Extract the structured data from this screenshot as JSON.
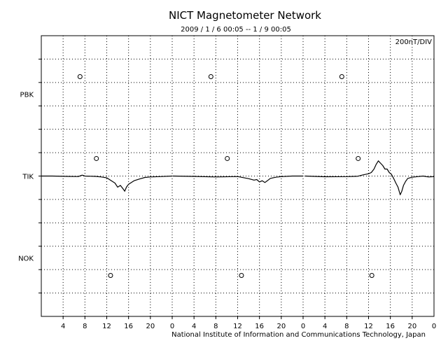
{
  "chart_data": {
    "type": "line",
    "title": "NICT Magnetometer Network",
    "subtitle": "2009 / 1 / 6   00:05 -- 1 / 9   00:05",
    "scale_label": "200nT/DIV",
    "credit": "National Institute of Information and Communications Technology, Japan",
    "x_tick_labels": [
      "4",
      "8",
      "12",
      "16",
      "20",
      "0",
      "4",
      "8",
      "12",
      "16",
      "20",
      "0",
      "4",
      "8",
      "12",
      "16",
      "20",
      "0"
    ],
    "x_range_hours": [
      0,
      72
    ],
    "days": 3,
    "stations": [
      "PBK",
      "TIK",
      "NOK"
    ],
    "station_offset_div": [
      3.5,
      0,
      -3.5
    ],
    "grid": "dotted",
    "gridlines": {
      "vertical_every_hours": 4,
      "horizontal_divisions": 12,
      "nt_per_division": 200
    },
    "series": [
      {
        "name": "TIK",
        "unit": "nT",
        "data_gaps_hours": [
          [
            24.0,
            24.1
          ],
          [
            48.0,
            48.4
          ]
        ],
        "points": [
          [
            0,
            0
          ],
          [
            2,
            0
          ],
          [
            5,
            -3
          ],
          [
            6.8,
            -4
          ],
          [
            7.5,
            8
          ],
          [
            8,
            0
          ],
          [
            10,
            -3
          ],
          [
            11,
            -8
          ],
          [
            12,
            -15
          ],
          [
            13,
            -45
          ],
          [
            13.5,
            -60
          ],
          [
            14,
            -95
          ],
          [
            14.5,
            -80
          ],
          [
            15,
            -110
          ],
          [
            15.3,
            -130
          ],
          [
            15.6,
            -95
          ],
          [
            16,
            -70
          ],
          [
            16.5,
            -55
          ],
          [
            17,
            -40
          ],
          [
            18,
            -25
          ],
          [
            19,
            -12
          ],
          [
            20,
            -8
          ],
          [
            22,
            -4
          ],
          [
            24,
            0
          ],
          [
            24.1,
            0
          ],
          [
            28,
            -3
          ],
          [
            32,
            -8
          ],
          [
            36,
            -4
          ],
          [
            38,
            -22
          ],
          [
            39,
            -35
          ],
          [
            39.5,
            -30
          ],
          [
            40,
            -50
          ],
          [
            40.5,
            -40
          ],
          [
            41,
            -55
          ],
          [
            41.5,
            -38
          ],
          [
            42,
            -20
          ],
          [
            43,
            -10
          ],
          [
            44,
            -5
          ],
          [
            46,
            0
          ],
          [
            48,
            0
          ],
          [
            48.4,
            0
          ],
          [
            52,
            -6
          ],
          [
            56,
            -5
          ],
          [
            58,
            -2
          ],
          [
            59,
            10
          ],
          [
            60,
            20
          ],
          [
            60.5,
            30
          ],
          [
            61,
            60
          ],
          [
            61.4,
            100
          ],
          [
            61.8,
            130
          ],
          [
            62.2,
            110
          ],
          [
            62.6,
            90
          ],
          [
            63,
            60
          ],
          [
            63.4,
            60
          ],
          [
            63.8,
            30
          ],
          [
            64.2,
            15
          ],
          [
            64.6,
            -20
          ],
          [
            65,
            -60
          ],
          [
            65.4,
            -95
          ],
          [
            65.8,
            -160
          ],
          [
            66.1,
            -130
          ],
          [
            66.4,
            -80
          ],
          [
            66.8,
            -45
          ],
          [
            67.2,
            -20
          ],
          [
            68,
            -10
          ],
          [
            69,
            -5
          ],
          [
            70,
            0
          ],
          [
            71,
            -8
          ],
          [
            72,
            -5
          ]
        ]
      }
    ],
    "daily_markers": [
      {
        "station": "PBK",
        "hours": [
          7.1,
          31.1,
          55.1
        ]
      },
      {
        "station": "TIK",
        "hours": [
          10.1,
          34.1,
          58.1
        ]
      },
      {
        "station": "NOK",
        "hours": [
          12.7,
          36.7,
          60.6
        ]
      }
    ]
  }
}
